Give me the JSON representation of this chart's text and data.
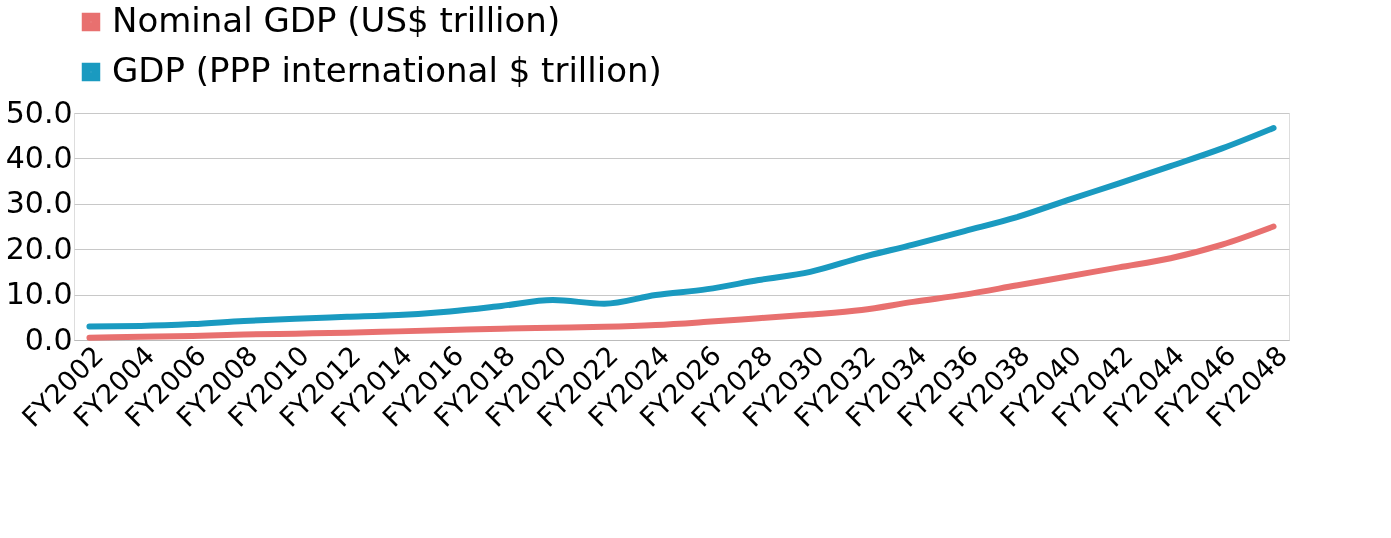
{
  "chart_data": {
    "type": "line",
    "categories": [
      "FY2002",
      "FY2004",
      "FY2006",
      "FY2008",
      "FY2010",
      "FY2012",
      "FY2014",
      "FY2016",
      "FY2018",
      "FY2020",
      "FY2022",
      "FY2024",
      "FY2026",
      "FY2028",
      "FY2030",
      "FY2032",
      "FY2034",
      "FY2036",
      "FY2038",
      "FY2040",
      "FY2042",
      "FY2044",
      "FY2046",
      "FY2048"
    ],
    "series": [
      {
        "name": "Nominal GDP (US$ trillion)",
        "color": "#e8706f",
        "values": [
          0.5,
          0.7,
          0.9,
          1.2,
          1.4,
          1.6,
          1.9,
          2.2,
          2.5,
          2.7,
          2.9,
          3.3,
          4.0,
          4.8,
          5.6,
          6.6,
          8.4,
          10.0,
          12.0,
          14.0,
          16.0,
          18.0,
          21.0,
          25.0
        ]
      },
      {
        "name": "GDP (PPP international $ trillion)",
        "color": "#1a9ac0",
        "values": [
          3.0,
          3.1,
          3.5,
          4.2,
          4.7,
          5.1,
          5.5,
          6.3,
          7.5,
          8.8,
          8.0,
          9.9,
          11.2,
          13.2,
          15.0,
          18.2,
          21.0,
          24.0,
          27.0,
          30.8,
          34.5,
          38.3,
          42.2,
          46.7
        ]
      }
    ],
    "ylim": [
      0,
      50
    ],
    "yticks": [
      {
        "value": 0,
        "label": "0.0"
      },
      {
        "value": 10,
        "label": "10.0"
      },
      {
        "value": 20,
        "label": "20.0"
      },
      {
        "value": 30,
        "label": "30.0"
      },
      {
        "value": 40,
        "label": "40.0"
      },
      {
        "value": 50,
        "label": "50.0"
      }
    ],
    "grid": "y",
    "legend": "top",
    "marker": "none",
    "line_style": "solid"
  }
}
